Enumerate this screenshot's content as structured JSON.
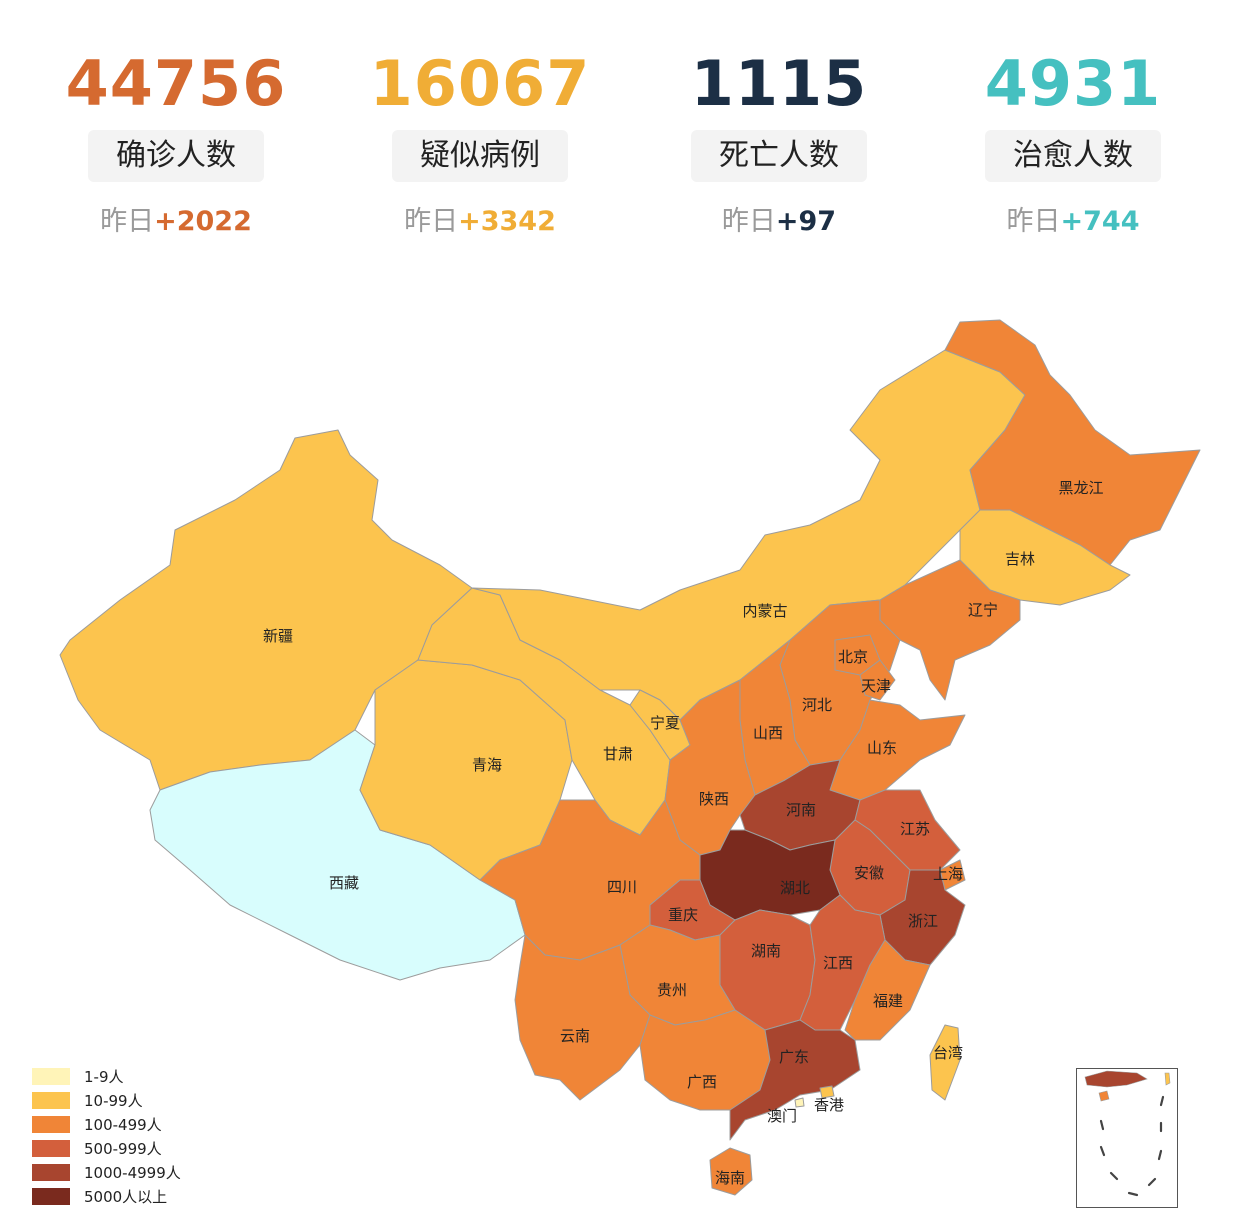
{
  "stats": [
    {
      "value": "44756",
      "label": "确诊人数",
      "delta_prefix": "昨日",
      "delta": "+2022",
      "color": "#d56a30"
    },
    {
      "value": "16067",
      "label": "疑似病例",
      "delta_prefix": "昨日",
      "delta": "+3342",
      "color": "#f0ad36"
    },
    {
      "value": "1115",
      "label": "死亡人数",
      "delta_prefix": "昨日",
      "delta": "+97",
      "color": "#1c2f45"
    },
    {
      "value": "4931",
      "label": "治愈人数",
      "delta_prefix": "昨日",
      "delta": "+744",
      "color": "#45c0c0"
    }
  ],
  "legend": [
    {
      "label": "1-9人",
      "color": "#fff4b8"
    },
    {
      "label": "10-99人",
      "color": "#fcc44e"
    },
    {
      "label": "100-499人",
      "color": "#f08537"
    },
    {
      "label": "500-999人",
      "color": "#d35f3c"
    },
    {
      "label": "1000-4999人",
      "color": "#a8452f"
    },
    {
      "label": "5000人以上",
      "color": "#7a2a1e"
    }
  ],
  "map_colors": {
    "no_data": "#d8fdfd",
    "ocean": "#ffffff",
    "border": "#9c9c9c"
  },
  "regions": [
    {
      "name": "新疆",
      "level": "10-99人"
    },
    {
      "name": "西藏",
      "level": "none"
    },
    {
      "name": "青海",
      "level": "10-99人"
    },
    {
      "name": "甘肃",
      "level": "10-99人"
    },
    {
      "name": "内蒙古",
      "level": "10-99人"
    },
    {
      "name": "宁夏",
      "level": "10-99人"
    },
    {
      "name": "黑龙江",
      "level": "100-499人"
    },
    {
      "name": "吉林",
      "level": "10-99人"
    },
    {
      "name": "辽宁",
      "level": "100-499人"
    },
    {
      "name": "北京",
      "level": "100-499人"
    },
    {
      "name": "天津",
      "level": "100-499人"
    },
    {
      "name": "河北",
      "level": "100-499人"
    },
    {
      "name": "山西",
      "level": "100-499人"
    },
    {
      "name": "山东",
      "level": "100-499人"
    },
    {
      "name": "陕西",
      "level": "100-499人"
    },
    {
      "name": "河南",
      "level": "1000-4999人"
    },
    {
      "name": "江苏",
      "level": "500-999人"
    },
    {
      "name": "安徽",
      "level": "500-999人"
    },
    {
      "name": "上海",
      "level": "100-499人"
    },
    {
      "name": "浙江",
      "level": "1000-4999人"
    },
    {
      "name": "湖北",
      "level": "5000人以上"
    },
    {
      "name": "四川",
      "level": "100-499人"
    },
    {
      "name": "重庆",
      "level": "500-999人"
    },
    {
      "name": "湖南",
      "level": "500-999人"
    },
    {
      "name": "江西",
      "level": "500-999人"
    },
    {
      "name": "福建",
      "level": "100-499人"
    },
    {
      "name": "贵州",
      "level": "100-499人"
    },
    {
      "name": "云南",
      "level": "100-499人"
    },
    {
      "name": "广西",
      "level": "100-499人"
    },
    {
      "name": "广东",
      "level": "1000-4999人"
    },
    {
      "name": "台湾",
      "level": "10-99人"
    },
    {
      "name": "香港",
      "level": "10-99人"
    },
    {
      "name": "澳门",
      "level": "1-9人"
    },
    {
      "name": "海南",
      "level": "100-499人"
    }
  ]
}
